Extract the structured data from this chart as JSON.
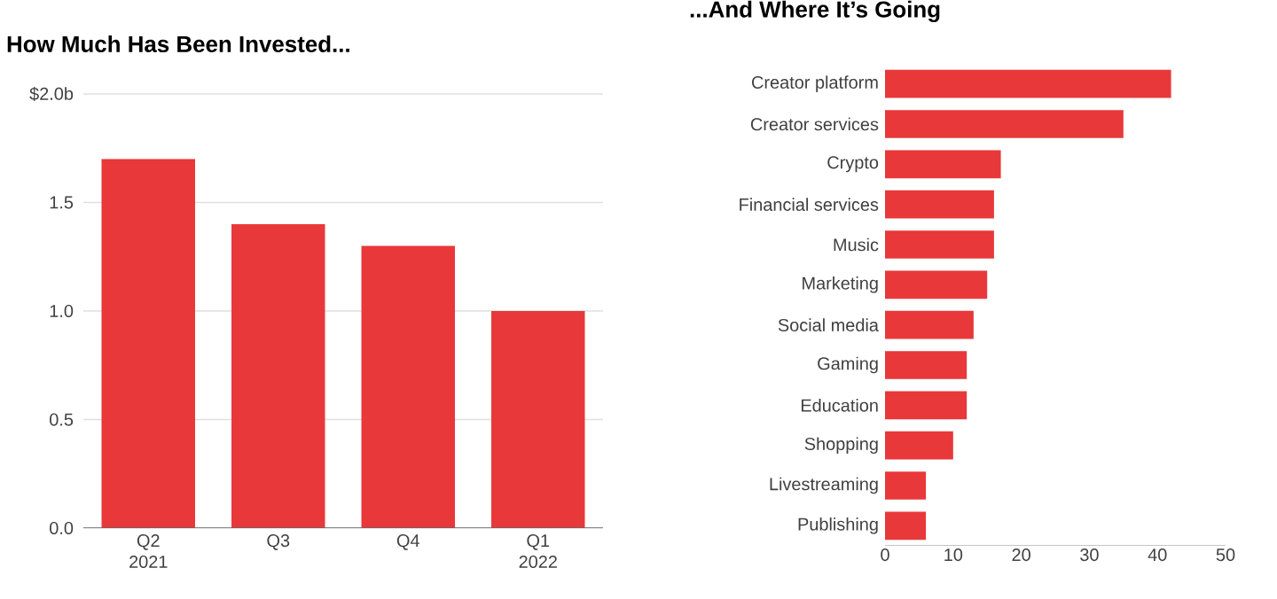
{
  "chart_data": [
    {
      "type": "bar",
      "title": "How Much Has Been Invested...",
      "categories": [
        "Q2 2021",
        "Q3",
        "Q4",
        "Q1 2022"
      ],
      "values": [
        1.7,
        1.4,
        1.3,
        1.0
      ],
      "color": "#e8383a",
      "ylim": [
        0,
        2
      ],
      "yticks": [
        {
          "value": 0,
          "label": "0.0"
        },
        {
          "value": 0.5,
          "label": "0.5"
        },
        {
          "value": 1,
          "label": "1.0"
        },
        {
          "value": 1.5,
          "label": "1.5"
        },
        {
          "value": 2,
          "label": "$2.0b"
        }
      ],
      "grid": "y"
    },
    {
      "type": "bar",
      "orientation": "horizontal",
      "title": "...And Where It’s Going",
      "categories": [
        "Creator platform",
        "Creator services",
        "Crypto",
        "Financial services",
        "Music",
        "Marketing",
        "Social media",
        "Gaming",
        "Education",
        "Shopping",
        "Livestreaming",
        "Publishing"
      ],
      "values": [
        42,
        35,
        17,
        16,
        16,
        15,
        13,
        12,
        12,
        10,
        6,
        6
      ],
      "color": "#e8383a",
      "xlim": [
        0,
        50
      ],
      "xticks": [
        0,
        10,
        20,
        30,
        40,
        50
      ]
    }
  ]
}
